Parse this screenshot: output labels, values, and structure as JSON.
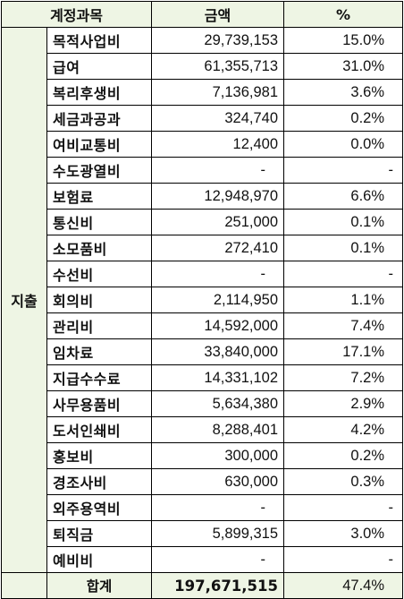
{
  "header": {
    "subject_label": "계정과목",
    "amount_label": "금액",
    "percent_label": "%"
  },
  "group_label": "지출",
  "rows": [
    {
      "subject": "목적사업비",
      "amount": "29,739,153",
      "percent": "15.0%"
    },
    {
      "subject": "급여",
      "amount": "61,355,713",
      "percent": "31.0%"
    },
    {
      "subject": "복리후생비",
      "amount": "7,136,981",
      "percent": "3.6%"
    },
    {
      "subject": "세금과공과",
      "amount": "324,740",
      "percent": "0.2%"
    },
    {
      "subject": "여비교통비",
      "amount": "12,400",
      "percent": "0.0%"
    },
    {
      "subject": "수도광열비",
      "amount": "-",
      "percent": "-"
    },
    {
      "subject": "보험료",
      "amount": "12,948,970",
      "percent": "6.6%"
    },
    {
      "subject": "통신비",
      "amount": "251,000",
      "percent": "0.1%"
    },
    {
      "subject": "소모품비",
      "amount": "272,410",
      "percent": "0.1%"
    },
    {
      "subject": "수선비",
      "amount": "-",
      "percent": "-"
    },
    {
      "subject": "회의비",
      "amount": "2,114,950",
      "percent": "1.1%"
    },
    {
      "subject": "관리비",
      "amount": "14,592,000",
      "percent": "7.4%"
    },
    {
      "subject": "임차료",
      "amount": "33,840,000",
      "percent": "17.1%"
    },
    {
      "subject": "지급수수료",
      "amount": "14,331,102",
      "percent": "7.2%"
    },
    {
      "subject": "사무용품비",
      "amount": "5,634,380",
      "percent": "2.9%"
    },
    {
      "subject": "도서인쇄비",
      "amount": "8,288,401",
      "percent": "4.2%"
    },
    {
      "subject": "홍보비",
      "amount": "300,000",
      "percent": "0.2%"
    },
    {
      "subject": "경조사비",
      "amount": "630,000",
      "percent": "0.3%"
    },
    {
      "subject": "외주용역비",
      "amount": "-",
      "percent": "-"
    },
    {
      "subject": "퇴직금",
      "amount": "5,899,315",
      "percent": "3.0%"
    },
    {
      "subject": "예비비",
      "amount": "-",
      "percent": "-"
    }
  ],
  "total": {
    "label": "합계",
    "amount": "197,671,515",
    "percent": "47.4%"
  }
}
